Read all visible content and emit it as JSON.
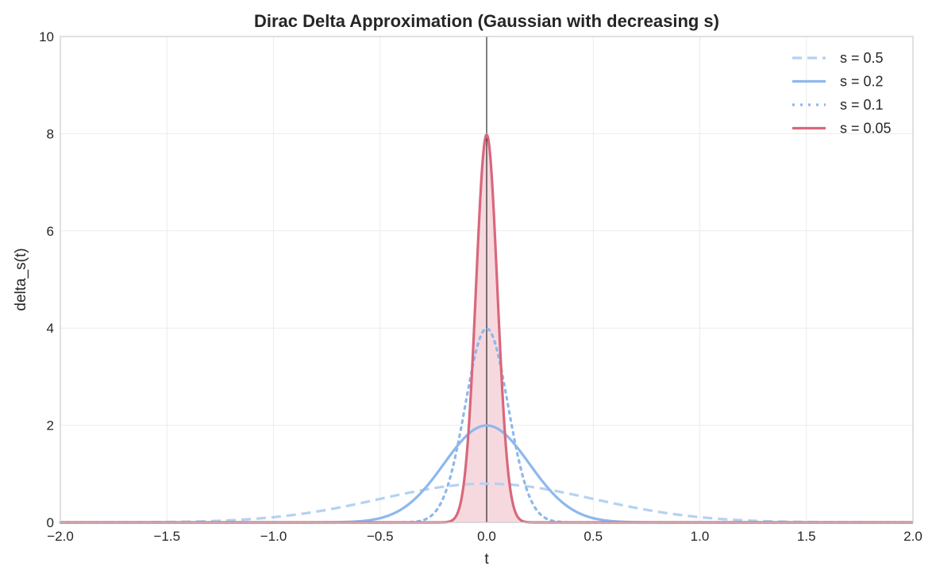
{
  "chart_data": {
    "type": "line",
    "title": "Dirac Delta Approximation (Gaussian with decreasing s)",
    "xlabel": "t",
    "ylabel": "delta_s(t)",
    "xlim": [
      -2.0,
      2.0
    ],
    "ylim": [
      0,
      10
    ],
    "xticks": [
      "−2.0",
      "−1.5",
      "−1.0",
      "−0.5",
      "0.0",
      "0.5",
      "1.0",
      "1.5",
      "2.0"
    ],
    "xtick_values": [
      -2.0,
      -1.5,
      -1.0,
      -0.5,
      0.0,
      0.5,
      1.0,
      1.5,
      2.0
    ],
    "yticks": [
      "0",
      "2",
      "4",
      "6",
      "8",
      "10"
    ],
    "ytick_values": [
      0,
      2,
      4,
      6,
      8,
      10
    ],
    "grid": true,
    "legend_position": "top-right",
    "function": "gaussian: exp(-t^2/(2 s^2)) / (s * sqrt(2 pi))",
    "vertical_line_at": 0,
    "series": [
      {
        "name": "s = 0.5",
        "s": 0.5,
        "peak": 0.798,
        "color": "#b5d1f2",
        "style": "dashed"
      },
      {
        "name": "s = 0.2",
        "s": 0.2,
        "peak": 1.995,
        "color": "#8db8ec",
        "style": "solid"
      },
      {
        "name": "s = 0.1",
        "s": 0.1,
        "peak": 3.989,
        "color": "#8db8ec",
        "style": "dotted"
      },
      {
        "name": "s = 0.05",
        "s": 0.05,
        "peak": 7.979,
        "color": "#d9677c",
        "style": "solid",
        "filled": true,
        "fill_color": "#f5d5da"
      }
    ]
  }
}
